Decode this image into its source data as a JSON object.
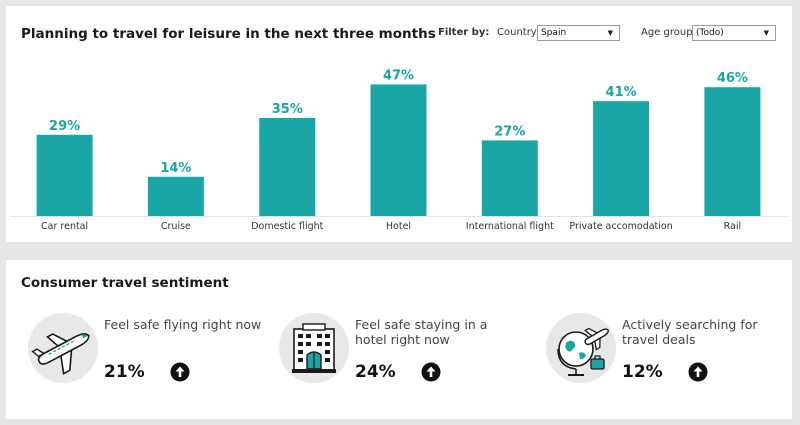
{
  "chart_card": {
    "title": "Planning to travel for leisure in the next three months",
    "filter_by_label": "Filter by:",
    "country_label": "Country",
    "country_value": "Spain",
    "age_label": "Age group",
    "age_value": "(Todo)"
  },
  "chart_data": {
    "type": "bar",
    "title": "Planning to travel for leisure in the next three months",
    "categories": [
      "Car rental",
      "Cruise",
      "Domestic flight",
      "Hotel",
      "International flight",
      "Private accomodation",
      "Rail"
    ],
    "values": [
      29,
      14,
      35,
      47,
      27,
      41,
      46
    ],
    "value_labels": [
      "29%",
      "14%",
      "35%",
      "47%",
      "27%",
      "41%",
      "46%"
    ],
    "unit": "%",
    "ylim": [
      0,
      50
    ],
    "grid": false,
    "bar_color": "#1aa6a4"
  },
  "sentiment": {
    "title": "Consumer travel sentiment",
    "items": [
      {
        "text": "Feel safe flying right now",
        "value": "21%",
        "icon": "airplane-icon",
        "trend_icon": "arrow-up-icon"
      },
      {
        "text": "Feel safe staying in a hotel right now",
        "value": "24%",
        "icon": "hotel-building-icon",
        "trend_icon": "arrow-up-icon"
      },
      {
        "text": "Actively searching for travel deals",
        "value": "12%",
        "icon": "globe-travel-icon",
        "trend_icon": "arrow-up-icon"
      }
    ]
  },
  "colors": {
    "accent": "#1aa6a4",
    "background": "#e6e6e6",
    "card": "#ffffff",
    "icon_circle": "#e8e8e8"
  }
}
